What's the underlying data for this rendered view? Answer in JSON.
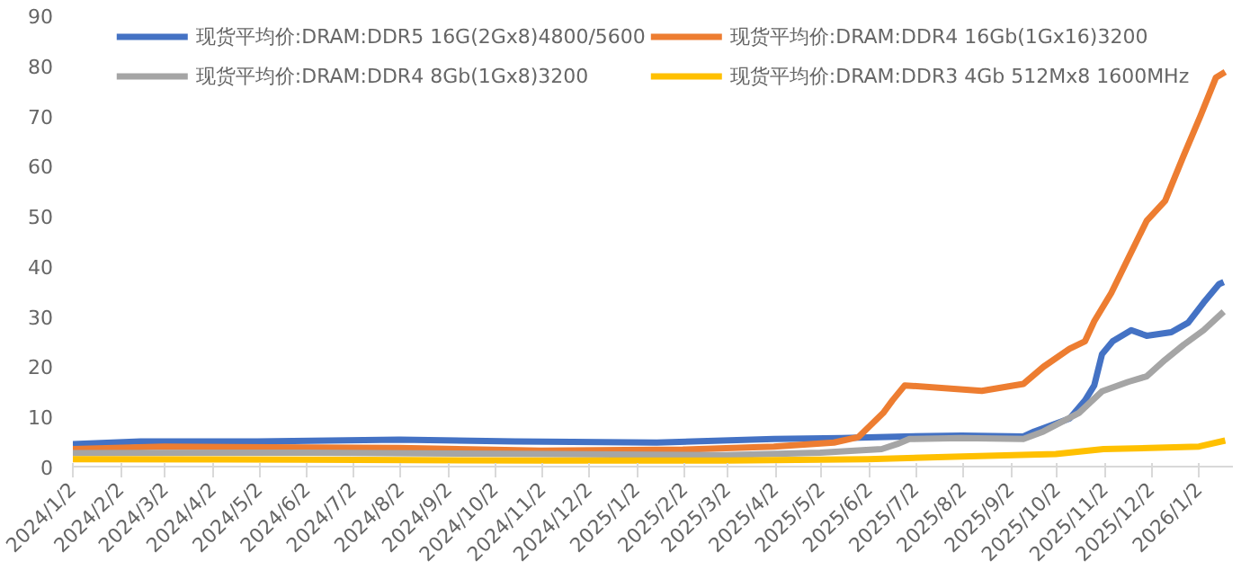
{
  "chart_data": {
    "type": "line",
    "xlim": [
      "2024-01-02",
      "2026-01-24"
    ],
    "ylim": [
      0,
      90
    ],
    "yticks": [
      0,
      10,
      20,
      30,
      40,
      50,
      60,
      70,
      80,
      90
    ],
    "xticks": [
      {
        "value": "2024-01-02",
        "label": "2024/1/2"
      },
      {
        "value": "2024-02-02",
        "label": "2024/2/2"
      },
      {
        "value": "2024-03-02",
        "label": "2024/3/2"
      },
      {
        "value": "2024-04-02",
        "label": "2024/4/2"
      },
      {
        "value": "2024-05-02",
        "label": "2024/5/2"
      },
      {
        "value": "2024-06-02",
        "label": "2024/6/2"
      },
      {
        "value": "2024-07-02",
        "label": "2024/7/2"
      },
      {
        "value": "2024-08-02",
        "label": "2024/8/2"
      },
      {
        "value": "2024-09-02",
        "label": "2024/9/2"
      },
      {
        "value": "2024-10-02",
        "label": "2024/10/2"
      },
      {
        "value": "2024-11-02",
        "label": "2024/11/2"
      },
      {
        "value": "2024-12-02",
        "label": "2024/12/2"
      },
      {
        "value": "2025-01-02",
        "label": "2025/1/2"
      },
      {
        "value": "2025-02-02",
        "label": "2025/2/2"
      },
      {
        "value": "2025-03-02",
        "label": "2025/3/2"
      },
      {
        "value": "2025-04-02",
        "label": "2025/4/2"
      },
      {
        "value": "2025-05-02",
        "label": "2025/5/2"
      },
      {
        "value": "2025-06-02",
        "label": "2025/6/2"
      },
      {
        "value": "2025-07-02",
        "label": "2025/7/2"
      },
      {
        "value": "2025-08-02",
        "label": "2025/8/2"
      },
      {
        "value": "2025-09-02",
        "label": "2025/9/2"
      },
      {
        "value": "2025-10-02",
        "label": "2025/10/2"
      },
      {
        "value": "2025-11-02",
        "label": "2025/11/2"
      },
      {
        "value": "2025-12-02",
        "label": "2025/12/2"
      },
      {
        "value": "2026-01-02",
        "label": "2026/1/2"
      }
    ],
    "grid": false,
    "legend": "top",
    "line_style": "solid",
    "marker": "none",
    "series": [
      {
        "name": "现货平均价:DRAM:DDR5 16G(2Gx8)4800/5600",
        "color": "#4472c4",
        "x": [
          "2024-01-02",
          "2024-02-15",
          "2024-05-01",
          "2024-08-01",
          "2024-10-15",
          "2025-01-15",
          "2025-04-01",
          "2025-05-15",
          "2025-06-25",
          "2025-08-01",
          "2025-09-10",
          "2025-09-17",
          "2025-10-10",
          "2025-10-20",
          "2025-10-26",
          "2025-10-31",
          "2025-11-07",
          "2025-11-19",
          "2025-11-29",
          "2025-12-15",
          "2025-12-26",
          "2026-01-05",
          "2026-01-15",
          "2026-01-18"
        ],
        "values": [
          4.5,
          5,
          5,
          5.4,
          5,
          4.8,
          5.5,
          5.7,
          6,
          6.2,
          6,
          7,
          9.6,
          13.2,
          16.2,
          22.4,
          25,
          27.2,
          26.1,
          26.8,
          28.7,
          32.7,
          36.4,
          36.8
        ]
      },
      {
        "name": "现货平均价:DRAM:DDR4 16Gb(1Gx16)3200",
        "color": "#ed7d31",
        "x": [
          "2024-01-02",
          "2024-03-01",
          "2024-08-01",
          "2024-11-01",
          "2025-02-01",
          "2025-04-01",
          "2025-05-10",
          "2025-05-26",
          "2025-06-11",
          "2025-06-17",
          "2025-06-25",
          "2025-08-14",
          "2025-09-10",
          "2025-09-23",
          "2025-10-10",
          "2025-10-20",
          "2025-10-26",
          "2025-11-06",
          "2025-11-17",
          "2025-11-29",
          "2025-12-11",
          "2025-12-23",
          "2026-01-03",
          "2026-01-13",
          "2026-01-19"
        ],
        "values": [
          3.5,
          4,
          3.7,
          3.2,
          3.4,
          4,
          4.8,
          5.9,
          10.7,
          13.2,
          16.2,
          15.1,
          16.5,
          19.9,
          23.5,
          25,
          29,
          34.6,
          41.5,
          49,
          53,
          62,
          70,
          77.6,
          78.7
        ]
      },
      {
        "name": "现货平均价:DRAM:DDR4 8Gb(1Gx8)3200",
        "color": "#a5a5a5",
        "x": [
          "2024-01-02",
          "2024-06-01",
          "2024-11-01",
          "2025-03-01",
          "2025-05-01",
          "2025-06-10",
          "2025-06-20",
          "2025-06-28",
          "2025-08-01",
          "2025-09-10",
          "2025-09-23",
          "2025-10-16",
          "2025-10-31",
          "2025-11-17",
          "2025-11-29",
          "2025-12-11",
          "2025-12-23",
          "2026-01-05",
          "2026-01-18"
        ],
        "values": [
          2.7,
          2.8,
          2.5,
          2.3,
          2.8,
          3.5,
          4.5,
          5.5,
          5.7,
          5.5,
          7,
          10.7,
          15,
          16.9,
          18,
          21.3,
          24.3,
          27.2,
          30.9
        ]
      },
      {
        "name": "现货平均价:DRAM:DDR3 4Gb 512Mx8 1600MHz",
        "color": "#ffc000",
        "x": [
          "2024-01-02",
          "2024-06-01",
          "2024-11-01",
          "2025-03-01",
          "2025-06-01",
          "2025-08-01",
          "2025-10-01",
          "2025-11-01",
          "2025-12-01",
          "2026-01-02",
          "2026-01-19"
        ],
        "values": [
          1.5,
          1.4,
          1.2,
          1.2,
          1.5,
          2,
          2.5,
          3.5,
          3.7,
          4,
          5.2
        ]
      }
    ]
  }
}
